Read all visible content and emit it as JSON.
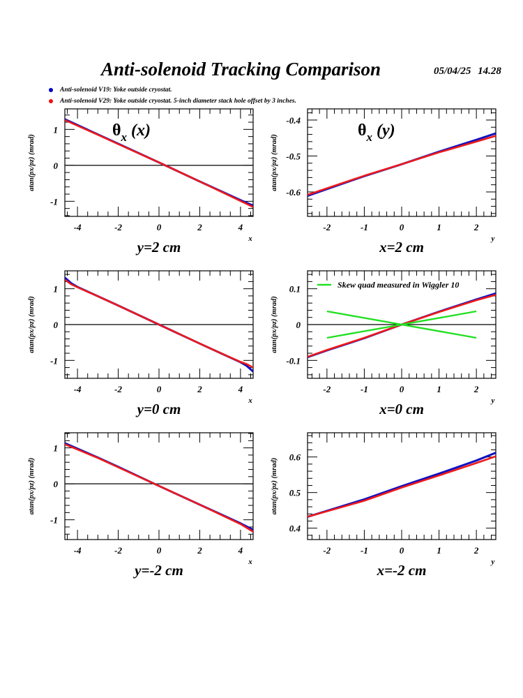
{
  "header": {
    "title": "Anti-solenoid Tracking Comparison",
    "date": "05/04/25   14.28"
  },
  "legend": [
    {
      "label": "Anti-solenoid V19: Yoke outside cryostat.",
      "color": "#0000cc"
    },
    {
      "label": "Anti-solenoid V29: Yoke outside cryostat. 5-inch diameter stack hole offset by 3 inches.",
      "color": "#ee1111"
    }
  ],
  "colors": {
    "v19": "#1010c0",
    "v29": "#ee1a1a",
    "skew": "#22e022",
    "axis": "#000000"
  },
  "chart_data": [
    {
      "type": "line",
      "panel": "row1-left",
      "annotation": "θx (x)",
      "title": "y=2 cm",
      "xlabel": "x",
      "ylabel": "atan(px/pz) (mrad)",
      "xlim": [
        -4.62,
        4.62
      ],
      "ylim": [
        -1.42,
        1.57
      ],
      "xticks": [
        -4,
        -2,
        0,
        2,
        4
      ],
      "xtick_labels": [
        "-4",
        "-2",
        "0",
        "2",
        "4"
      ],
      "yticks": [
        -1,
        0,
        1
      ],
      "ytick_labels": [
        "-1",
        "0",
        "1"
      ],
      "x_minor": 0.5,
      "y_minor": 0.2,
      "zero_line": true,
      "series": [
        {
          "name": "V19",
          "x": [
            -4.62,
            -3,
            -2,
            0,
            2,
            3,
            4,
            4.62
          ],
          "y": [
            1.28,
            0.86,
            0.6,
            0.08,
            -0.45,
            -0.71,
            -0.97,
            -1.12
          ]
        },
        {
          "name": "V29",
          "x": [
            -4.62,
            -3,
            -2,
            0,
            2,
            3,
            4,
            4.62
          ],
          "y": [
            1.26,
            0.85,
            0.59,
            0.08,
            -0.45,
            -0.72,
            -0.99,
            -1.16
          ]
        }
      ]
    },
    {
      "type": "line",
      "panel": "row1-right",
      "annotation": "θx (y)",
      "title": "x=2 cm",
      "xlabel": "y",
      "ylabel": "atan(px/pz) (mrad)",
      "xlim": [
        -2.52,
        2.52
      ],
      "ylim": [
        -0.668,
        -0.369
      ],
      "xticks": [
        -2,
        -1,
        0,
        1,
        2
      ],
      "xtick_labels": [
        "-2",
        "-1",
        "0",
        "1",
        "2"
      ],
      "yticks": [
        -0.6,
        -0.5,
        -0.4
      ],
      "ytick_labels": [
        "-0.6",
        "-0.5",
        "-0.4"
      ],
      "x_minor": 0.2,
      "y_minor": 0.02,
      "zero_line": false,
      "series": [
        {
          "name": "V19",
          "x": [
            -2.52,
            -1,
            0,
            1,
            2,
            2.52
          ],
          "y": [
            -0.611,
            -0.556,
            -0.523,
            -0.488,
            -0.455,
            -0.437
          ]
        },
        {
          "name": "V29",
          "x": [
            -2.52,
            -1,
            0,
            1,
            2,
            2.52
          ],
          "y": [
            -0.608,
            -0.555,
            -0.523,
            -0.49,
            -0.46,
            -0.444
          ]
        }
      ]
    },
    {
      "type": "line",
      "panel": "row2-left",
      "annotation": "",
      "title": "y=0 cm",
      "xlabel": "x",
      "ylabel": "atan(px/pz) (mrad)",
      "xlim": [
        -4.62,
        4.62
      ],
      "ylim": [
        -1.5,
        1.5
      ],
      "xticks": [
        -4,
        -2,
        0,
        2,
        4
      ],
      "xtick_labels": [
        "-4",
        "-2",
        "0",
        "2",
        "4"
      ],
      "yticks": [
        -1,
        0,
        1
      ],
      "ytick_labels": [
        "-1",
        "0",
        "1"
      ],
      "x_minor": 0.5,
      "y_minor": 0.2,
      "zero_line": true,
      "series": [
        {
          "name": "V19",
          "x": [
            -4.62,
            -4.3,
            -4,
            -3,
            -2,
            0,
            2,
            3,
            4,
            4.3,
            4.62
          ],
          "y": [
            1.31,
            1.15,
            1.05,
            0.79,
            0.53,
            0.0,
            -0.53,
            -0.79,
            -1.05,
            -1.15,
            -1.31
          ]
        },
        {
          "name": "V29",
          "x": [
            -4.62,
            -4.3,
            -4,
            -3,
            -2,
            0,
            2,
            3,
            4,
            4.3,
            4.62
          ],
          "y": [
            1.25,
            1.12,
            1.04,
            0.79,
            0.53,
            0.0,
            -0.53,
            -0.79,
            -1.04,
            -1.1,
            -1.2
          ]
        }
      ]
    },
    {
      "type": "line",
      "panel": "row2-right",
      "annotation": "",
      "title": "x=0 cm",
      "xlabel": "y",
      "ylabel": "atan(px/pz) (mrad)",
      "xlim": [
        -2.52,
        2.52
      ],
      "ylim": [
        -0.15,
        0.15
      ],
      "xticks": [
        -2,
        -1,
        0,
        1,
        2
      ],
      "xtick_labels": [
        "-2",
        "-1",
        "0",
        "1",
        "2"
      ],
      "yticks": [
        -0.1,
        0,
        0.1
      ],
      "ytick_labels": [
        "-0.1",
        "0",
        "0.1"
      ],
      "x_minor": 0.2,
      "y_minor": 0.02,
      "zero_line": true,
      "legend": "Skew quad measured in Wiggler 10",
      "series": [
        {
          "name": "V19",
          "x": [
            -2.52,
            -2,
            -1,
            0,
            1,
            2,
            2.52
          ],
          "y": [
            -0.091,
            -0.072,
            -0.038,
            0.0,
            0.036,
            0.07,
            0.087
          ]
        },
        {
          "name": "V29",
          "x": [
            -2.52,
            -2,
            -1,
            0,
            1,
            2,
            2.52
          ],
          "y": [
            -0.09,
            -0.071,
            -0.037,
            0.0,
            0.035,
            0.068,
            0.083
          ]
        },
        {
          "name": "Skew quad measured in Wiggler 10 (a)",
          "x": [
            -2,
            2
          ],
          "y": [
            0.037,
            -0.037
          ]
        },
        {
          "name": "Skew quad measured in Wiggler 10 (b)",
          "x": [
            -2,
            2
          ],
          "y": [
            -0.037,
            0.037
          ]
        }
      ]
    },
    {
      "type": "line",
      "panel": "row3-left",
      "annotation": "",
      "title": "y=-2 cm",
      "xlabel": "x",
      "ylabel": "atan(px/pz) (mrad)",
      "xlim": [
        -4.62,
        4.62
      ],
      "ylim": [
        -1.55,
        1.42
      ],
      "xticks": [
        -4,
        -2,
        0,
        2,
        4
      ],
      "xtick_labels": [
        "-4",
        "-2",
        "0",
        "2",
        "4"
      ],
      "yticks": [
        -1,
        0,
        1
      ],
      "ytick_labels": [
        "-1",
        "0",
        "1"
      ],
      "x_minor": 0.5,
      "y_minor": 0.2,
      "zero_line": true,
      "series": [
        {
          "name": "V19",
          "x": [
            -4.62,
            -3,
            -2,
            0,
            2,
            3,
            4,
            4.62
          ],
          "y": [
            1.13,
            0.73,
            0.47,
            -0.06,
            -0.58,
            -0.84,
            -1.1,
            -1.28
          ]
        },
        {
          "name": "V29",
          "x": [
            -4.62,
            -3,
            -2,
            0,
            2,
            3,
            4,
            4.62
          ],
          "y": [
            1.1,
            0.72,
            0.46,
            -0.06,
            -0.58,
            -0.85,
            -1.12,
            -1.33
          ]
        }
      ]
    },
    {
      "type": "line",
      "panel": "row3-right",
      "annotation": "",
      "title": "x=-2 cm",
      "xlabel": "y",
      "ylabel": "atan(px/pz) (mrad)",
      "xlim": [
        -2.52,
        2.52
      ],
      "ylim": [
        0.368,
        0.668
      ],
      "xticks": [
        -2,
        -1,
        0,
        1,
        2
      ],
      "xtick_labels": [
        "-2",
        "-1",
        "0",
        "1",
        "2"
      ],
      "yticks": [
        0.4,
        0.5,
        0.6
      ],
      "ytick_labels": [
        "0.4",
        "0.5",
        "0.6"
      ],
      "x_minor": 0.2,
      "y_minor": 0.02,
      "zero_line": false,
      "series": [
        {
          "name": "V19",
          "x": [
            -2.52,
            -1,
            0,
            1,
            2,
            2.52
          ],
          "y": [
            0.432,
            0.481,
            0.518,
            0.553,
            0.59,
            0.612
          ]
        },
        {
          "name": "V29",
          "x": [
            -2.52,
            -1,
            0,
            1,
            2,
            2.52
          ],
          "y": [
            0.432,
            0.477,
            0.514,
            0.548,
            0.583,
            0.602
          ]
        }
      ]
    }
  ]
}
